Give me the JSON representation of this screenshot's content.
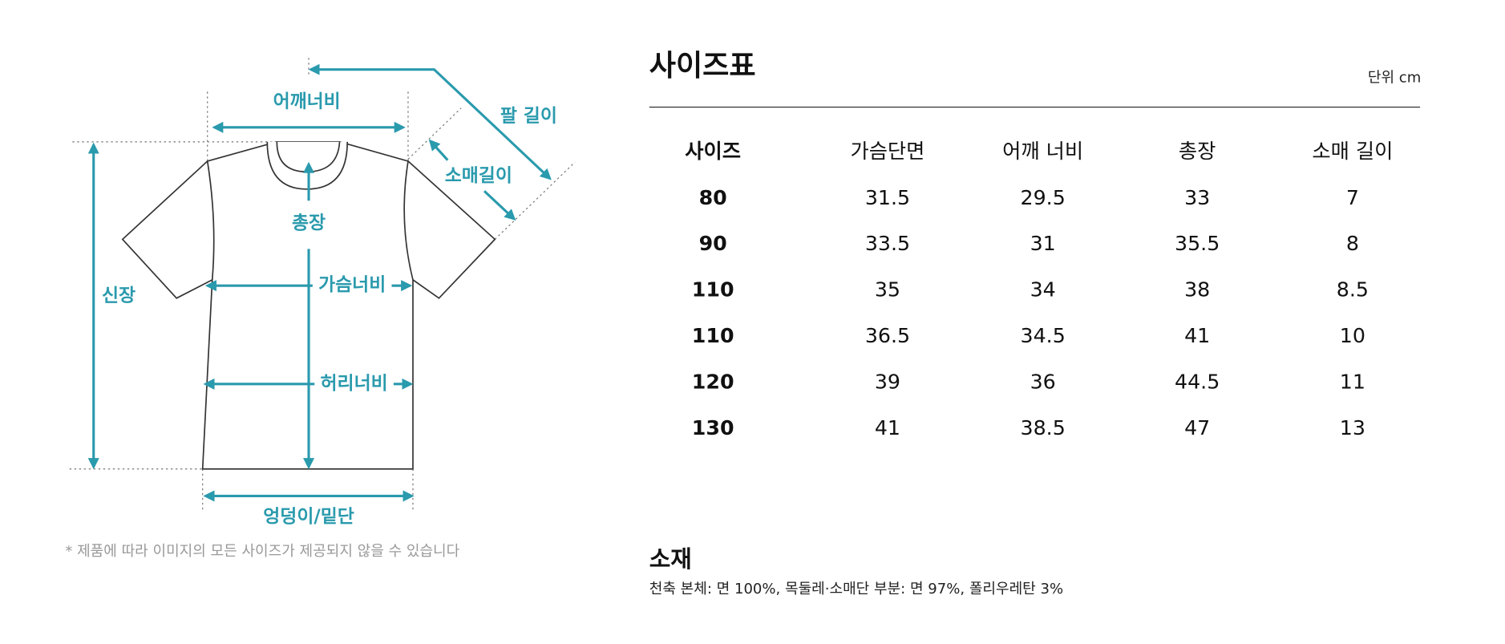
{
  "diagram": {
    "labels": {
      "shoulder": "어깨너비",
      "arm_length": "팔 길이",
      "sleeve": "소매길이",
      "total_length": "총장",
      "body_length": "신장",
      "chest": "가슴너비",
      "waist": "허리너비",
      "hem": "엉덩이/밑단"
    },
    "note": "* 제품에 따라 이미지의 모든 사이즈가 제공되지 않을 수 있습니다"
  },
  "size_table": {
    "title": "사이즈표",
    "unit": "단위 cm",
    "columns": [
      "사이즈",
      "가슴단면",
      "어깨 너비",
      "총장",
      "소매 길이"
    ],
    "rows": [
      [
        "80",
        "31.5",
        "29.5",
        "33",
        "7"
      ],
      [
        "90",
        "33.5",
        "31",
        "35.5",
        "8"
      ],
      [
        "110",
        "35",
        "34",
        "38",
        "8.5"
      ],
      [
        "110",
        "36.5",
        "34.5",
        "41",
        "10"
      ],
      [
        "120",
        "39",
        "36",
        "44.5",
        "11"
      ],
      [
        "130",
        "41",
        "38.5",
        "47",
        "13"
      ]
    ]
  },
  "material": {
    "title": "소재",
    "text": "천축 본체: 면 100%, 목둘레·소매단 부분: 면 97%, 폴리우레탄 3%"
  }
}
